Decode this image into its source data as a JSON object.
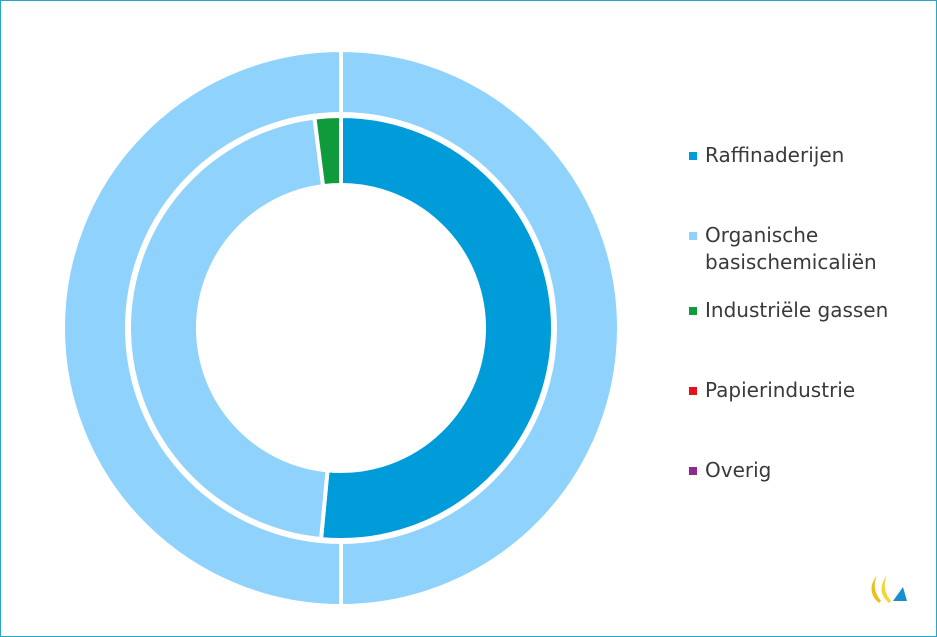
{
  "chart_data": {
    "type": "donut",
    "categories": [
      "Raffinaderijen",
      "Organische basischemicaliën",
      "Industriële gassen",
      "Papierindustrie",
      "Overig"
    ],
    "colors": [
      "#009bd9",
      "#8fd3fd",
      "#0f9a3c",
      "#e4121b",
      "#8e2a8e"
    ],
    "series": [
      {
        "values": [
          51.5,
          46.5,
          2,
          0,
          0
        ]
      },
      {
        "values": [
          0,
          100,
          0,
          0,
          0
        ]
      }
    ],
    "legend": "right"
  }
}
